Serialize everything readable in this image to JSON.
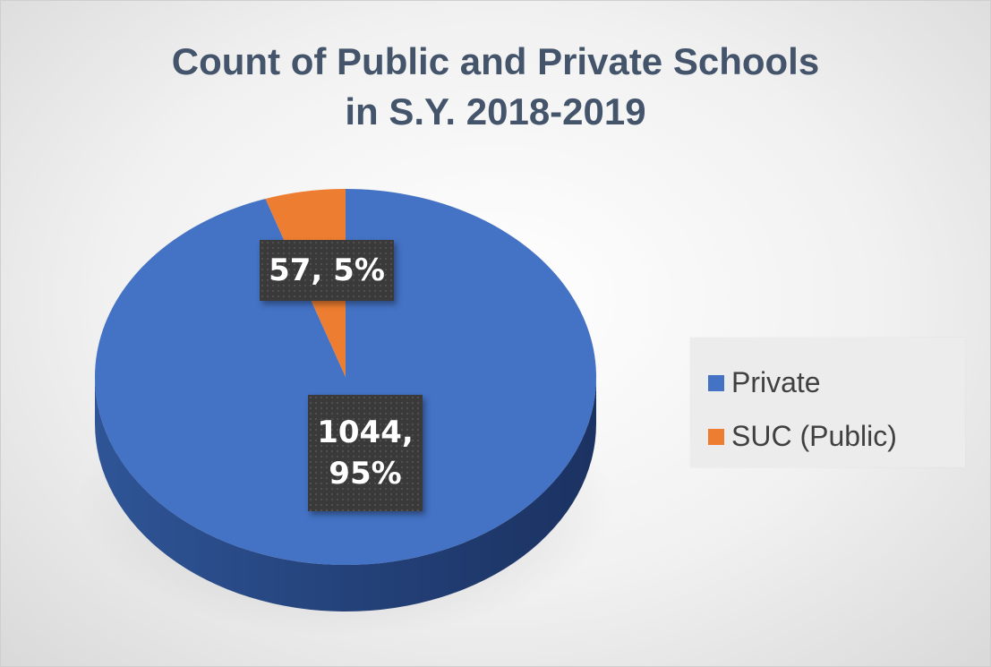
{
  "chart_data": {
    "type": "pie",
    "title_lines": [
      "Count of Public and Private Schools",
      "in S.Y. 2018-2019"
    ],
    "legend_position": "right",
    "slices": [
      {
        "name": "Private",
        "value": 1044,
        "percent": 95,
        "label": "1044, 95%",
        "label_lines": [
          "1044,",
          "95%"
        ],
        "color": "#4472c4"
      },
      {
        "name": "SUC (Public)",
        "value": 57,
        "percent": 5,
        "label": "57, 5%",
        "label_lines": [
          "57, 5%"
        ],
        "color": "#ed7d31"
      }
    ]
  }
}
